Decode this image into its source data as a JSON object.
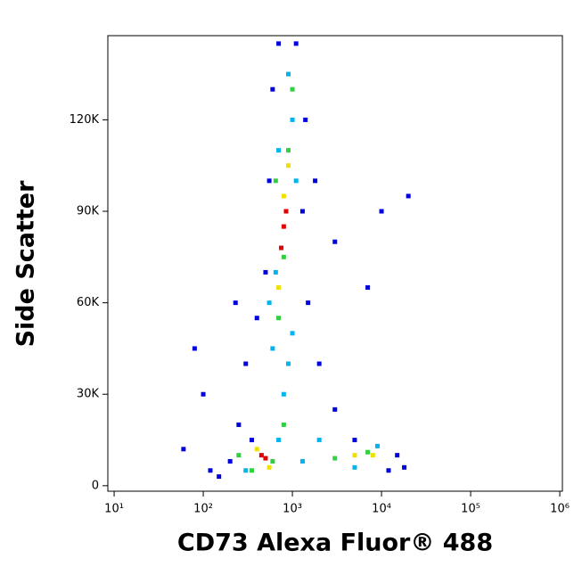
{
  "chart_data": {
    "type": "scatter",
    "x_label": "CD73 Alexa Fluor® 488",
    "y_label": "Side Scatter",
    "x_log": true,
    "xlim": [
      8.5,
      1070000
    ],
    "ylim": [
      -1800,
      147600
    ],
    "xticks": [
      {
        "value": 10,
        "label": "10¹"
      },
      {
        "value": 100,
        "label": "10²"
      },
      {
        "value": 1000,
        "label": "10³"
      },
      {
        "value": 10000,
        "label": "10⁴"
      },
      {
        "value": 100000,
        "label": "10⁵"
      },
      {
        "value": 1000000,
        "label": "10⁶"
      }
    ],
    "yticks": [
      0,
      {
        "value": 30000,
        "label": "30K"
      },
      {
        "value": 60000,
        "label": "60K"
      },
      {
        "value": 90000,
        "label": "90K"
      },
      {
        "value": 120000,
        "label": "120K"
      }
    ],
    "series": [
      {
        "color": "#0000dd",
        "x": [
          60,
          120,
          200,
          250,
          300,
          400,
          500,
          550,
          600,
          1400,
          1300,
          1500,
          2000,
          3000,
          5000,
          15000,
          18000,
          1800,
          3000,
          7000,
          100,
          80,
          350,
          1100,
          700,
          10000,
          20000,
          230,
          150,
          12000
        ],
        "y": [
          12000,
          5000,
          8000,
          20000,
          40000,
          55000,
          70000,
          100000,
          130000,
          120000,
          90000,
          60000,
          40000,
          25000,
          15000,
          10000,
          6000,
          100000,
          80000,
          65000,
          30000,
          45000,
          15000,
          145000,
          145000,
          90000,
          95000,
          60000,
          3000,
          5000
        ]
      },
      {
        "color": "#00b4f0",
        "x": [
          300,
          700,
          800,
          600,
          1000,
          650,
          1000,
          700,
          900,
          1100,
          2000,
          5000,
          9000,
          1300,
          550,
          900
        ],
        "y": [
          5000,
          15000,
          30000,
          45000,
          50000,
          70000,
          120000,
          110000,
          135000,
          100000,
          15000,
          6000,
          13000,
          8000,
          60000,
          40000
        ]
      },
      {
        "color": "#30d040",
        "x": [
          600,
          800,
          700,
          650,
          900,
          1000,
          3000,
          7000,
          250,
          350,
          800
        ],
        "y": [
          8000,
          20000,
          55000,
          100000,
          110000,
          130000,
          9000,
          11000,
          10000,
          5000,
          75000
        ]
      },
      {
        "color": "#f0e000",
        "x": [
          400,
          550,
          700,
          900,
          800,
          5000,
          8000
        ],
        "y": [
          12000,
          6000,
          65000,
          105000,
          95000,
          10000,
          10000
        ]
      },
      {
        "color": "#e00000",
        "x": [
          450,
          500,
          800,
          850,
          750
        ],
        "y": [
          10000,
          9000,
          85000,
          90000,
          78000
        ]
      }
    ]
  }
}
